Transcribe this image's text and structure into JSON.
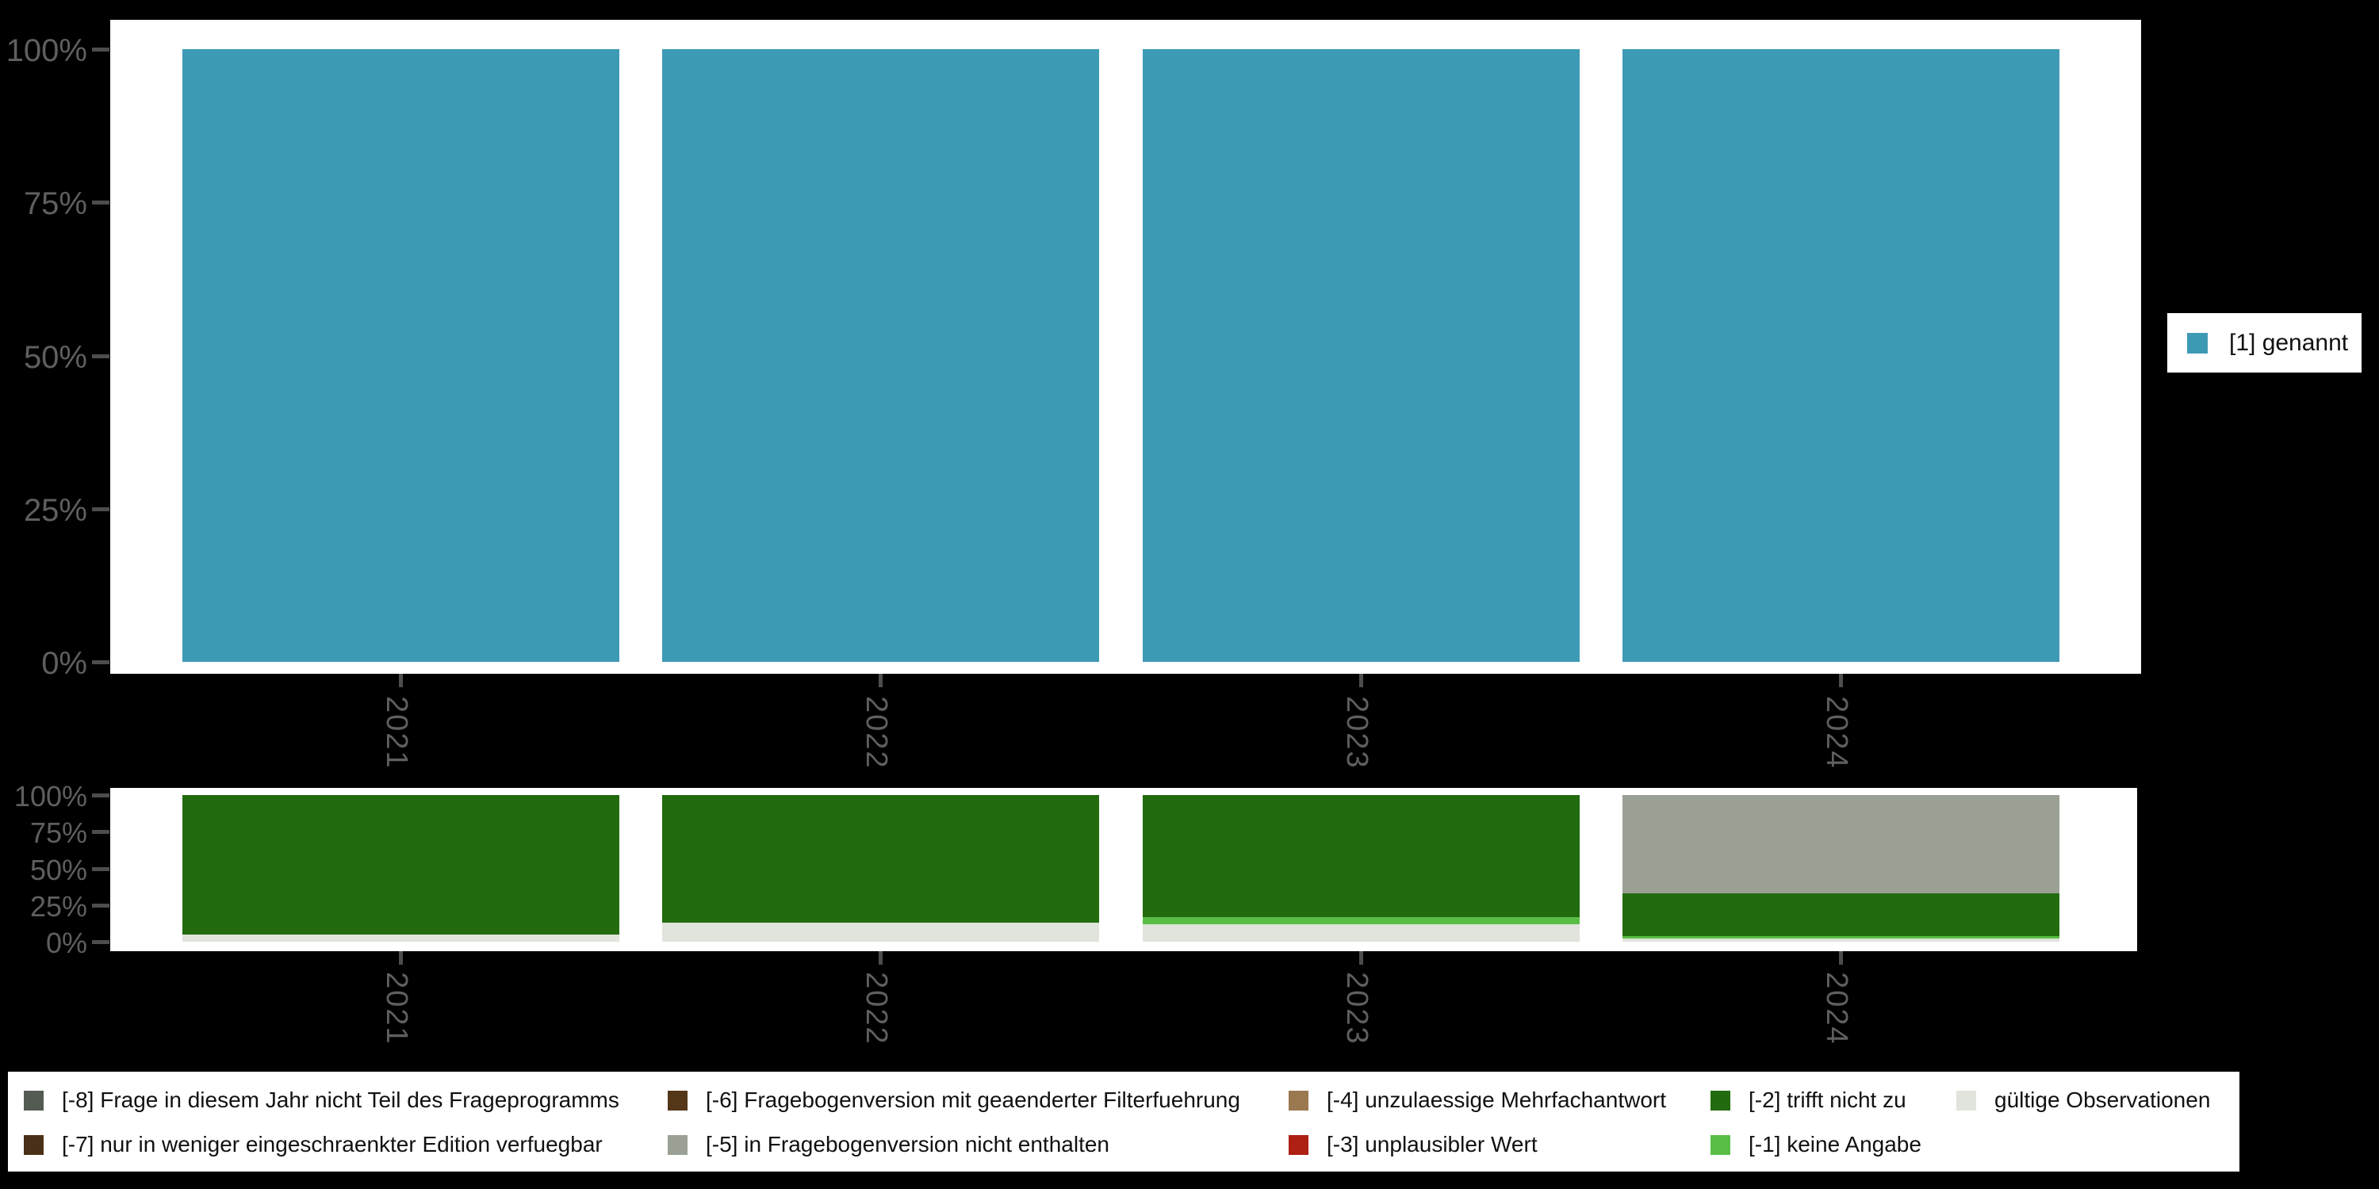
{
  "colors": {
    "background": "#000000",
    "panel": "#ffffff",
    "axis_text": "#5f5f5f",
    "tick": "#4d4d4d",
    "legend_text": "#111111",
    "genannt_teal": "#3D9AB5",
    "trifft_nicht_zu_green": "#226B0F",
    "keine_angabe_green": "#59BE46",
    "gueltige_pale": "#E0E4DC",
    "frageversion_gray": "#9AA094",
    "frageprogramm_gray": "#545B53",
    "edition_brown": "#4A3017",
    "filter_brown": "#543619",
    "mehrfach_tan": "#9B7950",
    "unplausibel_red": "#AE1F14"
  },
  "chart_data": [
    {
      "type": "bar",
      "subtype": "stacked-percent-column",
      "title": "",
      "categories": [
        "2021",
        "2022",
        "2023",
        "2024"
      ],
      "series": [
        {
          "name": "[1] genannt",
          "color": "#3D9AB5",
          "values": [
            100,
            100,
            100,
            100
          ]
        }
      ],
      "xlabel": "",
      "ylabel": "",
      "ylim": [
        0,
        100
      ],
      "yticks": [
        "0%",
        "25%",
        "50%",
        "75%",
        "100%"
      ],
      "grid": false,
      "legend_position": "right"
    },
    {
      "type": "bar",
      "subtype": "stacked-percent-column",
      "title": "",
      "categories": [
        "2021",
        "2022",
        "2023",
        "2024"
      ],
      "series": [
        {
          "name": "gültige Observationen",
          "color": "#E0E4DC",
          "values": [
            5,
            13,
            12,
            2
          ]
        },
        {
          "name": "[-1] keine Angabe",
          "color": "#59BE46",
          "values": [
            0,
            0,
            5,
            2
          ]
        },
        {
          "name": "[-2] trifft nicht zu",
          "color": "#226B0F",
          "values": [
            95,
            87,
            83,
            29
          ]
        },
        {
          "name": "[-5] in Fragebogenversion nicht enthalten",
          "color": "#9AA094",
          "values": [
            0,
            0,
            0,
            67
          ]
        }
      ],
      "xlabel": "",
      "ylabel": "",
      "ylim": [
        0,
        100
      ],
      "yticks": [
        "0%",
        "25%",
        "50%",
        "75%",
        "100%"
      ],
      "grid": false,
      "legend_position": "bottom"
    }
  ],
  "legend_right": {
    "label": "[1] genannt",
    "color": "#3D9AB5"
  },
  "legend_bottom": {
    "columns": [
      {
        "x": 30,
        "entries": [
          {
            "label": "[-8] Frage in diesem Jahr nicht Teil des Frageprogramms",
            "color": "#545B53"
          },
          {
            "label": "[-7] nur in weniger eingeschraenkter Edition verfuegbar",
            "color": "#4A3017"
          }
        ]
      },
      {
        "x": 842,
        "entries": [
          {
            "label": "[-6] Fragebogenversion mit geaenderter Filterfuehrung",
            "color": "#543619"
          },
          {
            "label": "[-5] in Fragebogenversion nicht enthalten",
            "color": "#9AA094"
          }
        ]
      },
      {
        "x": 1625,
        "entries": [
          {
            "label": "[-4] unzulaessige Mehrfachantwort",
            "color": "#9B7950"
          },
          {
            "label": "[-3] unplausibler Wert",
            "color": "#AE1F14"
          }
        ]
      },
      {
        "x": 2157,
        "entries": [
          {
            "label": "[-2] trifft nicht zu",
            "color": "#226B0F"
          },
          {
            "label": "[-1] keine Angabe",
            "color": "#59BE46"
          }
        ]
      },
      {
        "x": 2467,
        "entries": [
          {
            "label": "gültige Observationen",
            "color": "#E0E4DC"
          }
        ]
      }
    ]
  }
}
